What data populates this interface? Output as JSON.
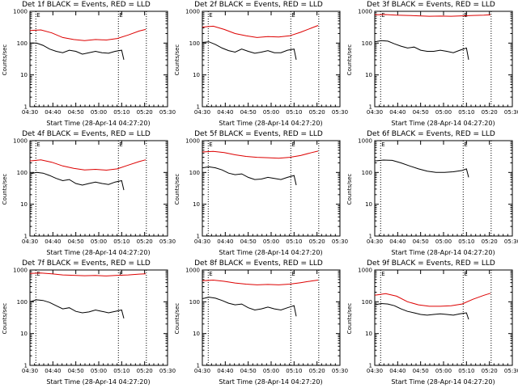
{
  "ylabel": "Counts/sec",
  "xlabel": "Start Time (28-Apr-14 04:27:20)",
  "marker_label": "E",
  "x_ticks": [
    "04:30",
    "04:40",
    "04:50",
    "05:00",
    "05:10",
    "05:20",
    "05:30"
  ],
  "y_ticks": [
    "1",
    "10",
    "100",
    "1000"
  ],
  "colors": {
    "events": "#000000",
    "lld": "#dd0000"
  },
  "chart_data": [
    {
      "type": "line",
      "title": "Det 1f BLACK = Events, RED = LLD",
      "xlim": [
        0,
        63
      ],
      "ylim": [
        1,
        1000
      ],
      "yscale": "log",
      "vlines": [
        2.7,
        40.5,
        53.3
      ],
      "series": [
        {
          "color": "events",
          "x": [
            0,
            3,
            6,
            9,
            12,
            15,
            18,
            21,
            24,
            27,
            30,
            33,
            36,
            39,
            42,
            43
          ],
          "values": [
            100,
            100,
            85,
            65,
            55,
            50,
            60,
            55,
            45,
            50,
            55,
            50,
            48,
            55,
            60,
            30
          ]
        },
        {
          "color": "lld",
          "x": [
            0,
            5,
            10,
            15,
            20,
            25,
            30,
            35,
            40,
            45,
            50,
            53
          ],
          "values": [
            250,
            260,
            210,
            150,
            130,
            120,
            130,
            125,
            140,
            180,
            240,
            270
          ]
        }
      ]
    },
    {
      "type": "line",
      "title": "Det 2f BLACK = Events, RED = LLD",
      "xlim": [
        0,
        63
      ],
      "ylim": [
        1,
        1000
      ],
      "yscale": "log",
      "vlines": [
        2.7,
        40.5,
        53.3
      ],
      "series": [
        {
          "color": "events",
          "x": [
            0,
            3,
            6,
            9,
            12,
            15,
            18,
            21,
            24,
            27,
            30,
            33,
            36,
            39,
            42,
            43
          ],
          "values": [
            105,
            110,
            90,
            70,
            58,
            52,
            65,
            55,
            48,
            52,
            58,
            50,
            50,
            60,
            65,
            30
          ]
        },
        {
          "color": "lld",
          "x": [
            0,
            5,
            10,
            15,
            20,
            25,
            30,
            35,
            40,
            45,
            50,
            53
          ],
          "values": [
            320,
            340,
            270,
            200,
            170,
            150,
            160,
            155,
            170,
            220,
            300,
            360
          ]
        }
      ]
    },
    {
      "type": "line",
      "title": "Det 3f BLACK = Events, RED = LLD",
      "xlim": [
        0,
        63
      ],
      "ylim": [
        1,
        1000
      ],
      "yscale": "log",
      "vlines": [
        2.7,
        40.5,
        53.3
      ],
      "series": [
        {
          "color": "events",
          "x": [
            0,
            3,
            6,
            9,
            12,
            15,
            18,
            21,
            24,
            27,
            30,
            33,
            36,
            39,
            42,
            43
          ],
          "values": [
            110,
            120,
            115,
            95,
            80,
            70,
            75,
            60,
            55,
            55,
            60,
            55,
            50,
            60,
            70,
            30
          ]
        },
        {
          "color": "lld",
          "x": [
            0,
            5,
            10,
            15,
            20,
            25,
            30,
            35,
            40,
            45,
            50,
            53
          ],
          "values": [
            780,
            790,
            760,
            740,
            720,
            700,
            710,
            700,
            720,
            740,
            760,
            780
          ]
        }
      ]
    },
    {
      "type": "line",
      "title": "Det 4f BLACK = Events, RED = LLD",
      "xlim": [
        0,
        63
      ],
      "ylim": [
        1,
        1000
      ],
      "yscale": "log",
      "vlines": [
        2.7,
        40.5,
        53.3
      ],
      "series": [
        {
          "color": "events",
          "x": [
            0,
            3,
            6,
            9,
            12,
            15,
            18,
            21,
            24,
            27,
            30,
            33,
            36,
            39,
            42,
            43
          ],
          "values": [
            90,
            100,
            95,
            80,
            65,
            55,
            60,
            45,
            40,
            45,
            50,
            45,
            42,
            50,
            55,
            28
          ]
        },
        {
          "color": "lld",
          "x": [
            0,
            5,
            10,
            15,
            20,
            25,
            30,
            35,
            40,
            45,
            50,
            53
          ],
          "values": [
            230,
            250,
            210,
            160,
            135,
            120,
            125,
            118,
            130,
            170,
            220,
            250
          ]
        }
      ]
    },
    {
      "type": "line",
      "title": "Det 5f BLACK = Events, RED = LLD",
      "xlim": [
        0,
        63
      ],
      "ylim": [
        1,
        1000
      ],
      "yscale": "log",
      "vlines": [
        2.7,
        40.5,
        53.3
      ],
      "series": [
        {
          "color": "events",
          "x": [
            0,
            3,
            6,
            9,
            12,
            15,
            18,
            21,
            24,
            27,
            30,
            33,
            36,
            39,
            42,
            43
          ],
          "values": [
            140,
            150,
            140,
            120,
            95,
            85,
            90,
            70,
            60,
            62,
            70,
            65,
            60,
            70,
            80,
            40
          ]
        },
        {
          "color": "lld",
          "x": [
            0,
            5,
            10,
            15,
            20,
            25,
            30,
            35,
            40,
            45,
            50,
            53
          ],
          "values": [
            440,
            460,
            420,
            360,
            320,
            300,
            290,
            280,
            300,
            340,
            420,
            470
          ]
        }
      ]
    },
    {
      "type": "line",
      "title": "Det 6f BLACK = Events, RED = LLD",
      "xlim": [
        0,
        63
      ],
      "ylim": [
        1,
        1000
      ],
      "yscale": "log",
      "vlines": [
        2.7,
        40.5,
        53.3
      ],
      "series": [
        {
          "color": "events",
          "x": [
            0,
            4,
            8,
            12,
            16,
            20,
            24,
            28,
            32,
            36,
            40,
            42,
            43
          ],
          "values": [
            230,
            245,
            240,
            200,
            160,
            130,
            110,
            100,
            100,
            105,
            115,
            130,
            70
          ]
        }
      ]
    },
    {
      "type": "line",
      "title": "Det 7f BLACK = Events, RED = LLD",
      "xlim": [
        0,
        63
      ],
      "ylim": [
        1,
        1000
      ],
      "yscale": "log",
      "vlines": [
        2.7,
        40.5,
        53.3
      ],
      "series": [
        {
          "color": "events",
          "x": [
            0,
            3,
            6,
            9,
            12,
            15,
            18,
            21,
            24,
            27,
            30,
            33,
            36,
            39,
            42,
            43
          ],
          "values": [
            100,
            115,
            110,
            95,
            75,
            60,
            65,
            50,
            45,
            48,
            55,
            50,
            45,
            50,
            55,
            30
          ]
        },
        {
          "color": "lld",
          "x": [
            0,
            5,
            10,
            15,
            20,
            25,
            30,
            35,
            40,
            45,
            50,
            53
          ],
          "values": [
            780,
            800,
            760,
            700,
            680,
            660,
            670,
            650,
            680,
            700,
            740,
            760
          ]
        }
      ]
    },
    {
      "type": "line",
      "title": "Det 8f BLACK = Events, RED = LLD",
      "xlim": [
        0,
        63
      ],
      "ylim": [
        1,
        1000
      ],
      "yscale": "log",
      "vlines": [
        2.7,
        40.5,
        53.3
      ],
      "series": [
        {
          "color": "events",
          "x": [
            0,
            3,
            6,
            9,
            12,
            15,
            18,
            21,
            24,
            27,
            30,
            33,
            36,
            39,
            42,
            43
          ],
          "values": [
            125,
            140,
            130,
            110,
            90,
            80,
            85,
            65,
            55,
            60,
            68,
            60,
            55,
            65,
            75,
            35
          ]
        },
        {
          "color": "lld",
          "x": [
            0,
            5,
            10,
            15,
            20,
            25,
            30,
            35,
            40,
            45,
            50,
            53
          ],
          "values": [
            460,
            480,
            440,
            390,
            360,
            340,
            350,
            340,
            360,
            400,
            450,
            480
          ]
        }
      ]
    },
    {
      "type": "line",
      "title": "Det 9f BLACK = Events, RED = LLD",
      "xlim": [
        0,
        63
      ],
      "ylim": [
        1,
        1000
      ],
      "yscale": "log",
      "vlines": [
        2.7,
        40.5,
        53.3
      ],
      "series": [
        {
          "color": "events",
          "x": [
            0,
            3,
            6,
            9,
            12,
            15,
            18,
            21,
            24,
            27,
            30,
            33,
            36,
            39,
            42,
            43
          ],
          "values": [
            80,
            88,
            85,
            75,
            60,
            50,
            45,
            40,
            38,
            40,
            42,
            40,
            38,
            42,
            45,
            28
          ]
        },
        {
          "color": "lld",
          "x": [
            0,
            5,
            10,
            15,
            20,
            25,
            30,
            35,
            40,
            45,
            50,
            53
          ],
          "values": [
            160,
            180,
            150,
            100,
            80,
            72,
            72,
            75,
            85,
            120,
            160,
            185
          ]
        }
      ]
    }
  ]
}
